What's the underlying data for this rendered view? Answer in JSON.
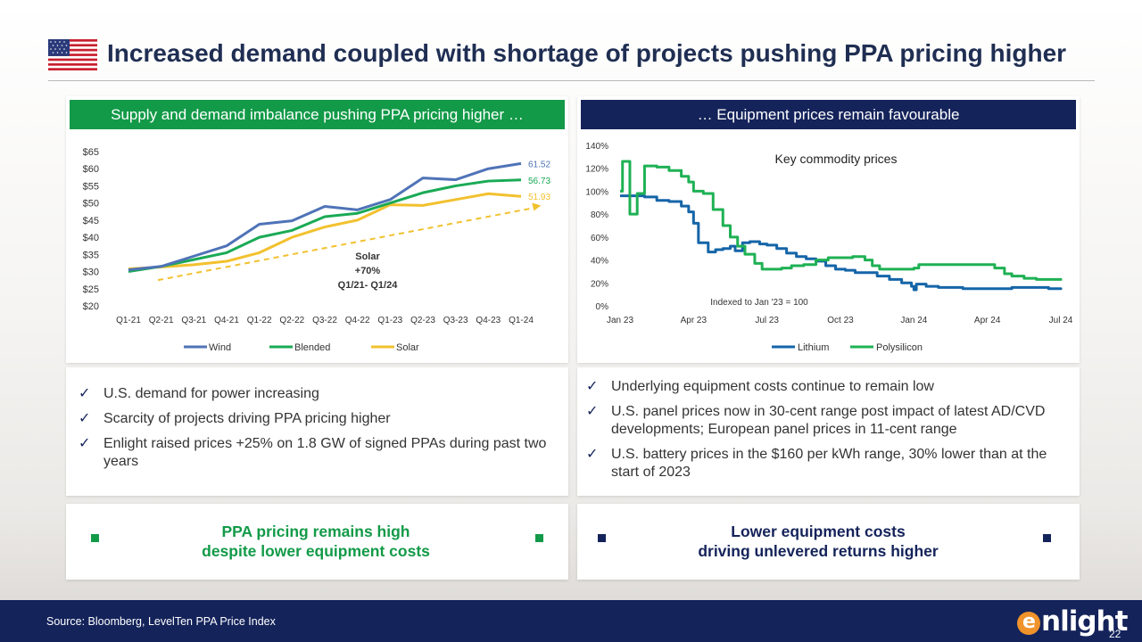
{
  "title": "Increased demand coupled with shortage of projects pushing PPA pricing higher",
  "colors": {
    "navy": "#14235a",
    "green": "#129a48",
    "title": "#1f2e52"
  },
  "left_panel": {
    "header": "Supply and demand imbalance pushing PPA pricing higher …",
    "bullets": [
      "U.S. demand for power increasing",
      "Scarcity of projects driving PPA pricing higher",
      "Enlight raised prices +25% on 1.8 GW of signed PPAs during past two years"
    ],
    "callout": [
      "PPA pricing remains high",
      "despite lower equipment costs"
    ]
  },
  "right_panel": {
    "header": "… Equipment prices remain favourable",
    "bullets": [
      "Underlying equipment costs continue to remain low",
      "U.S. panel prices now in 30-cent range post impact of latest AD/CVD developments; European panel prices in 11-cent range",
      "U.S. battery prices in the $160 per kWh range, 30% lower than at the start of 2023"
    ],
    "callout": [
      "Lower equipment costs",
      "driving unlevered returns higher"
    ]
  },
  "footer": {
    "source": "Source: Bloomberg, LevelTen PPA Price Index",
    "logo_text": "nlight",
    "logo_letter": "e",
    "page": "22"
  },
  "chart_data": [
    {
      "type": "line",
      "title": "",
      "categories": [
        "Q1-21",
        "Q2-21",
        "Q3-21",
        "Q4-21",
        "Q1-22",
        "Q2-22",
        "Q3-22",
        "Q4-22",
        "Q1-23",
        "Q2-23",
        "Q3-23",
        "Q4-23",
        "Q1-24"
      ],
      "ylim": [
        20,
        65
      ],
      "yticks": [
        "$20",
        "$25",
        "$30",
        "$35",
        "$40",
        "$45",
        "$50",
        "$55",
        "$60",
        "$65"
      ],
      "series": [
        {
          "name": "Wind",
          "color": "#4f73b7",
          "values": [
            30.5,
            31.5,
            34.5,
            37.5,
            43.8,
            44.8,
            49,
            48,
            51,
            57.3,
            56.8,
            60,
            61.52
          ],
          "end_label": "61.52"
        },
        {
          "name": "Blended",
          "color": "#1aaa55",
          "values": [
            30,
            31.5,
            33.5,
            35.5,
            40,
            42,
            46,
            47,
            50,
            53,
            55,
            56.4,
            56.73
          ],
          "end_label": "56.73"
        },
        {
          "name": "Solar",
          "color": "#f2c12e",
          "values": [
            30.8,
            31.3,
            32,
            33,
            35.5,
            40,
            43,
            45,
            49.5,
            49.3,
            51,
            52.7,
            51.93
          ],
          "end_label": "51.93"
        }
      ],
      "trend": {
        "from": [
          0.9,
          27.5
        ],
        "to": [
          12.5,
          49
        ],
        "color": "#f2c12e"
      },
      "annotation": [
        "Solar",
        "+70%",
        "Q1/21- Q1/24"
      ]
    },
    {
      "type": "line",
      "title": "Key commodity prices",
      "note": "Indexed to Jan '23 = 100",
      "x_ticks": [
        "Jan 23",
        "Apr 23",
        "Jul 23",
        "Oct 23",
        "Jan 24",
        "Apr 24",
        "Jul 24"
      ],
      "x_range_months": [
        0,
        18
      ],
      "ylim": [
        0,
        140
      ],
      "yticks": [
        "0%",
        "20%",
        "40%",
        "60%",
        "80%",
        "100%",
        "120%",
        "140%"
      ],
      "series": [
        {
          "name": "Lithium",
          "color": "#1565a8",
          "points": [
            [
              0,
              96
            ],
            [
              1,
              95
            ],
            [
              1.5,
              92
            ],
            [
              2,
              91
            ],
            [
              2.5,
              87
            ],
            [
              2.8,
              82
            ],
            [
              3,
              72
            ],
            [
              3.2,
              55
            ],
            [
              3.4,
              55
            ],
            [
              3.6,
              47
            ],
            [
              3.9,
              49
            ],
            [
              4.2,
              50
            ],
            [
              4.5,
              52
            ],
            [
              4.7,
              48
            ],
            [
              5,
              55
            ],
            [
              5.3,
              56
            ],
            [
              5.7,
              54
            ],
            [
              6,
              53
            ],
            [
              6.4,
              50
            ],
            [
              6.8,
              46
            ],
            [
              7.2,
              43
            ],
            [
              7.6,
              41
            ],
            [
              8,
              39
            ],
            [
              8.4,
              35
            ],
            [
              8.8,
              32
            ],
            [
              9.2,
              31
            ],
            [
              9.6,
              29
            ],
            [
              10,
              29
            ],
            [
              10.5,
              26
            ],
            [
              11,
              23
            ],
            [
              11.5,
              20
            ],
            [
              11.9,
              17
            ],
            [
              12,
              14
            ],
            [
              12.1,
              19
            ],
            [
              12.5,
              17
            ],
            [
              13,
              16
            ],
            [
              13.5,
              16
            ],
            [
              14,
              15
            ],
            [
              15,
              15
            ],
            [
              16,
              16
            ],
            [
              17,
              16
            ],
            [
              17.5,
              15
            ],
            [
              18,
              14
            ]
          ]
        },
        {
          "name": "Polysilicon",
          "color": "#1fb154",
          "points": [
            [
              0,
              100
            ],
            [
              0.1,
              126
            ],
            [
              0.3,
              126
            ],
            [
              0.4,
              80
            ],
            [
              0.6,
              80
            ],
            [
              0.7,
              98
            ],
            [
              0.9,
              98
            ],
            [
              1,
              122
            ],
            [
              1.5,
              121
            ],
            [
              2,
              118
            ],
            [
              2.5,
              113
            ],
            [
              2.8,
              108
            ],
            [
              3,
              100
            ],
            [
              3.4,
              98
            ],
            [
              3.8,
              84
            ],
            [
              4.2,
              70
            ],
            [
              4.5,
              60
            ],
            [
              4.8,
              52
            ],
            [
              5.1,
              45
            ],
            [
              5.5,
              37
            ],
            [
              5.8,
              32
            ],
            [
              6.2,
              32
            ],
            [
              6.6,
              33
            ],
            [
              7,
              35
            ],
            [
              7.5,
              36
            ],
            [
              8,
              40
            ],
            [
              8.5,
              42
            ],
            [
              9,
              42
            ],
            [
              9.5,
              43
            ],
            [
              10,
              40
            ],
            [
              10.3,
              35
            ],
            [
              10.6,
              32
            ],
            [
              11,
              32
            ],
            [
              11.5,
              32
            ],
            [
              12,
              33
            ],
            [
              12.2,
              36
            ],
            [
              12.6,
              36
            ],
            [
              13,
              36
            ],
            [
              14,
              36
            ],
            [
              15,
              36
            ],
            [
              15.3,
              33
            ],
            [
              15.7,
              28
            ],
            [
              16,
              26
            ],
            [
              16.5,
              24
            ],
            [
              17,
              23
            ],
            [
              18,
              22
            ]
          ]
        }
      ]
    }
  ]
}
